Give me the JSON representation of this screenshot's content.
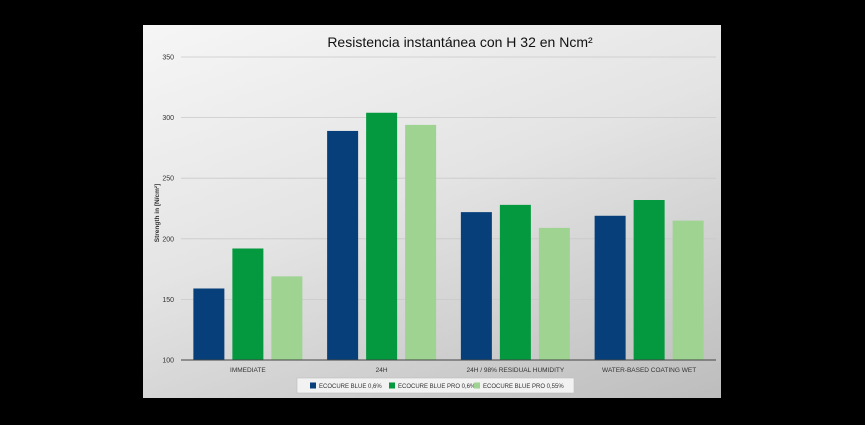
{
  "chart_data": {
    "type": "bar",
    "title": "Resistencia instantánea con H 32 en Ncm²",
    "xlabel": "",
    "ylabel": "Strength in [N/cm²]",
    "ylim": [
      100,
      350
    ],
    "yticks": [
      100,
      150,
      200,
      250,
      300,
      350
    ],
    "grid": true,
    "legend_position": "bottom",
    "categories": [
      "IMMEDIATE",
      "24H",
      "24H / 98% RESIDUAL HUMIDITY",
      "WATER-BASED COATING WET"
    ],
    "series": [
      {
        "name": "ECOCURE BLUE 0,6%",
        "color": "#063f7a",
        "values": [
          159,
          289,
          222,
          219
        ]
      },
      {
        "name": "ECOCURE BLUE PRO 0,6%",
        "color": "#04993e",
        "values": [
          192,
          304,
          228,
          232
        ]
      },
      {
        "name": "ECOCURE BLUE PRO 0,55%",
        "color": "#9ed392",
        "values": [
          169,
          294,
          209,
          215
        ]
      }
    ]
  }
}
